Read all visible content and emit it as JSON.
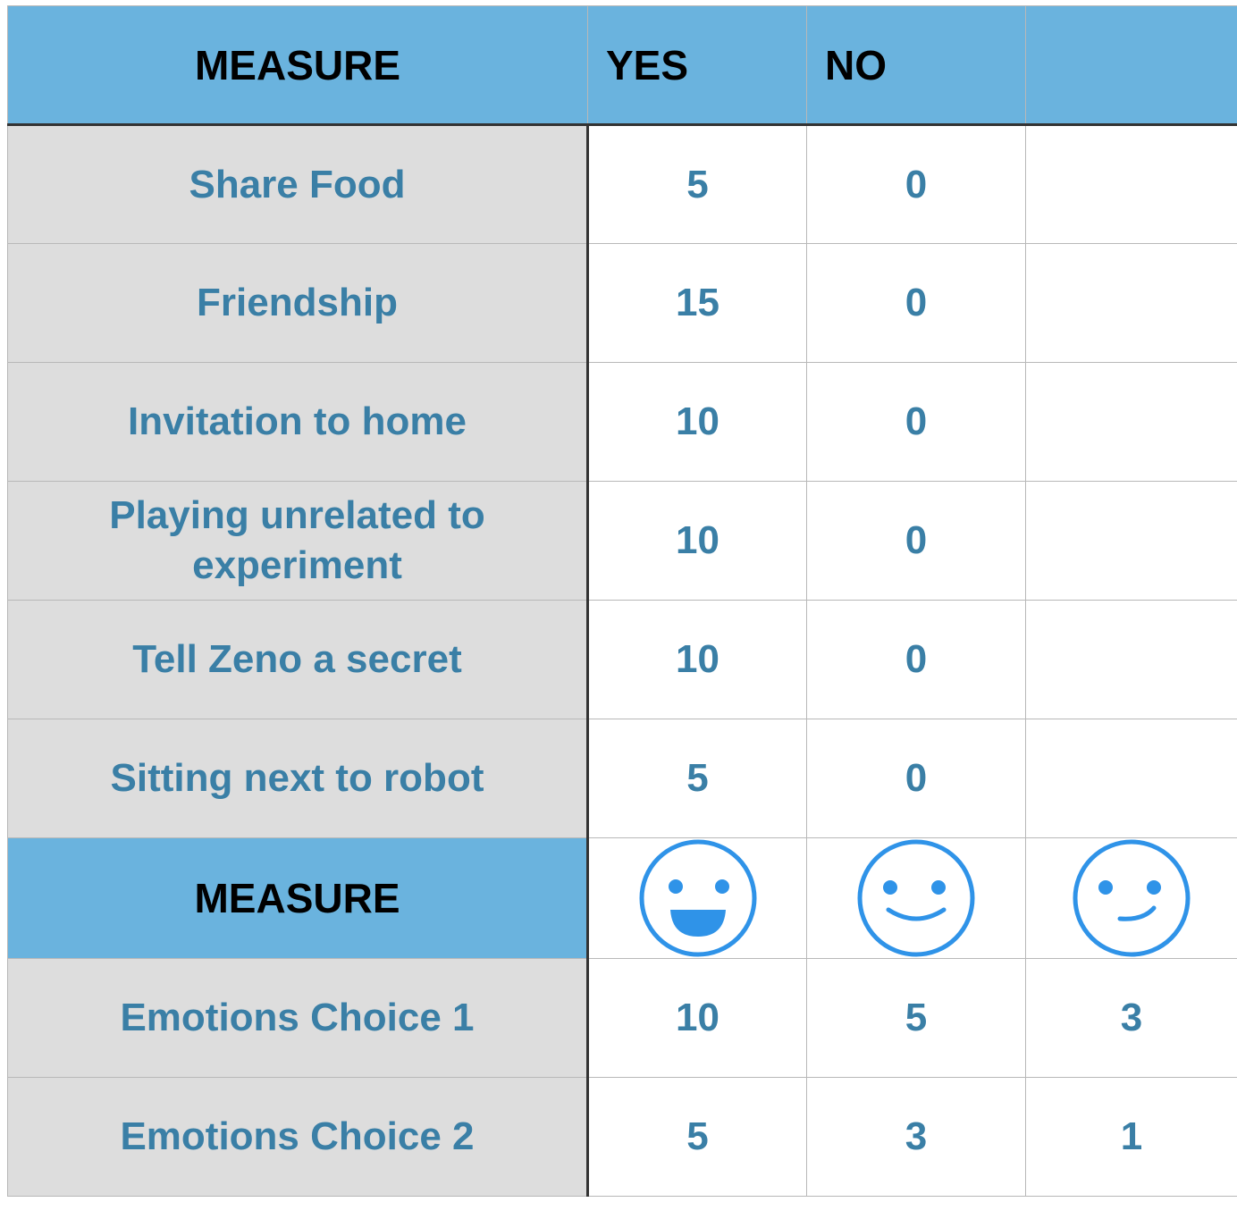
{
  "header": {
    "measure": "MEASURE",
    "yes": "YES",
    "no": "NO",
    "extra": ""
  },
  "rows": [
    {
      "measure": "Share Food",
      "yes": "5",
      "no": "0"
    },
    {
      "measure": "Friendship",
      "yes": "15",
      "no": "0"
    },
    {
      "measure": "Invitation to home",
      "yes": "10",
      "no": "0"
    },
    {
      "measure": "Playing unrelated to experiment",
      "yes": "10",
      "no": "0"
    },
    {
      "measure": "Tell Zeno a secret",
      "yes": "10",
      "no": "0"
    },
    {
      "measure": "Sitting next to robot",
      "yes": "5",
      "no": "0"
    }
  ],
  "emotion_header": {
    "measure": "MEASURE",
    "faces": [
      "big-smile-face-icon",
      "smile-face-icon",
      "slight-smile-face-icon"
    ]
  },
  "emotion_rows": [
    {
      "measure": "Emotions Choice 1",
      "values": [
        "10",
        "5",
        "3"
      ]
    },
    {
      "measure": "Emotions Choice 2",
      "values": [
        "5",
        "3",
        "1"
      ]
    }
  ],
  "colors": {
    "header_bg": "#6ab3de",
    "label_bg": "#dddddd",
    "text_blue": "#3a7fa6",
    "face_blue": "#2f93e8"
  }
}
